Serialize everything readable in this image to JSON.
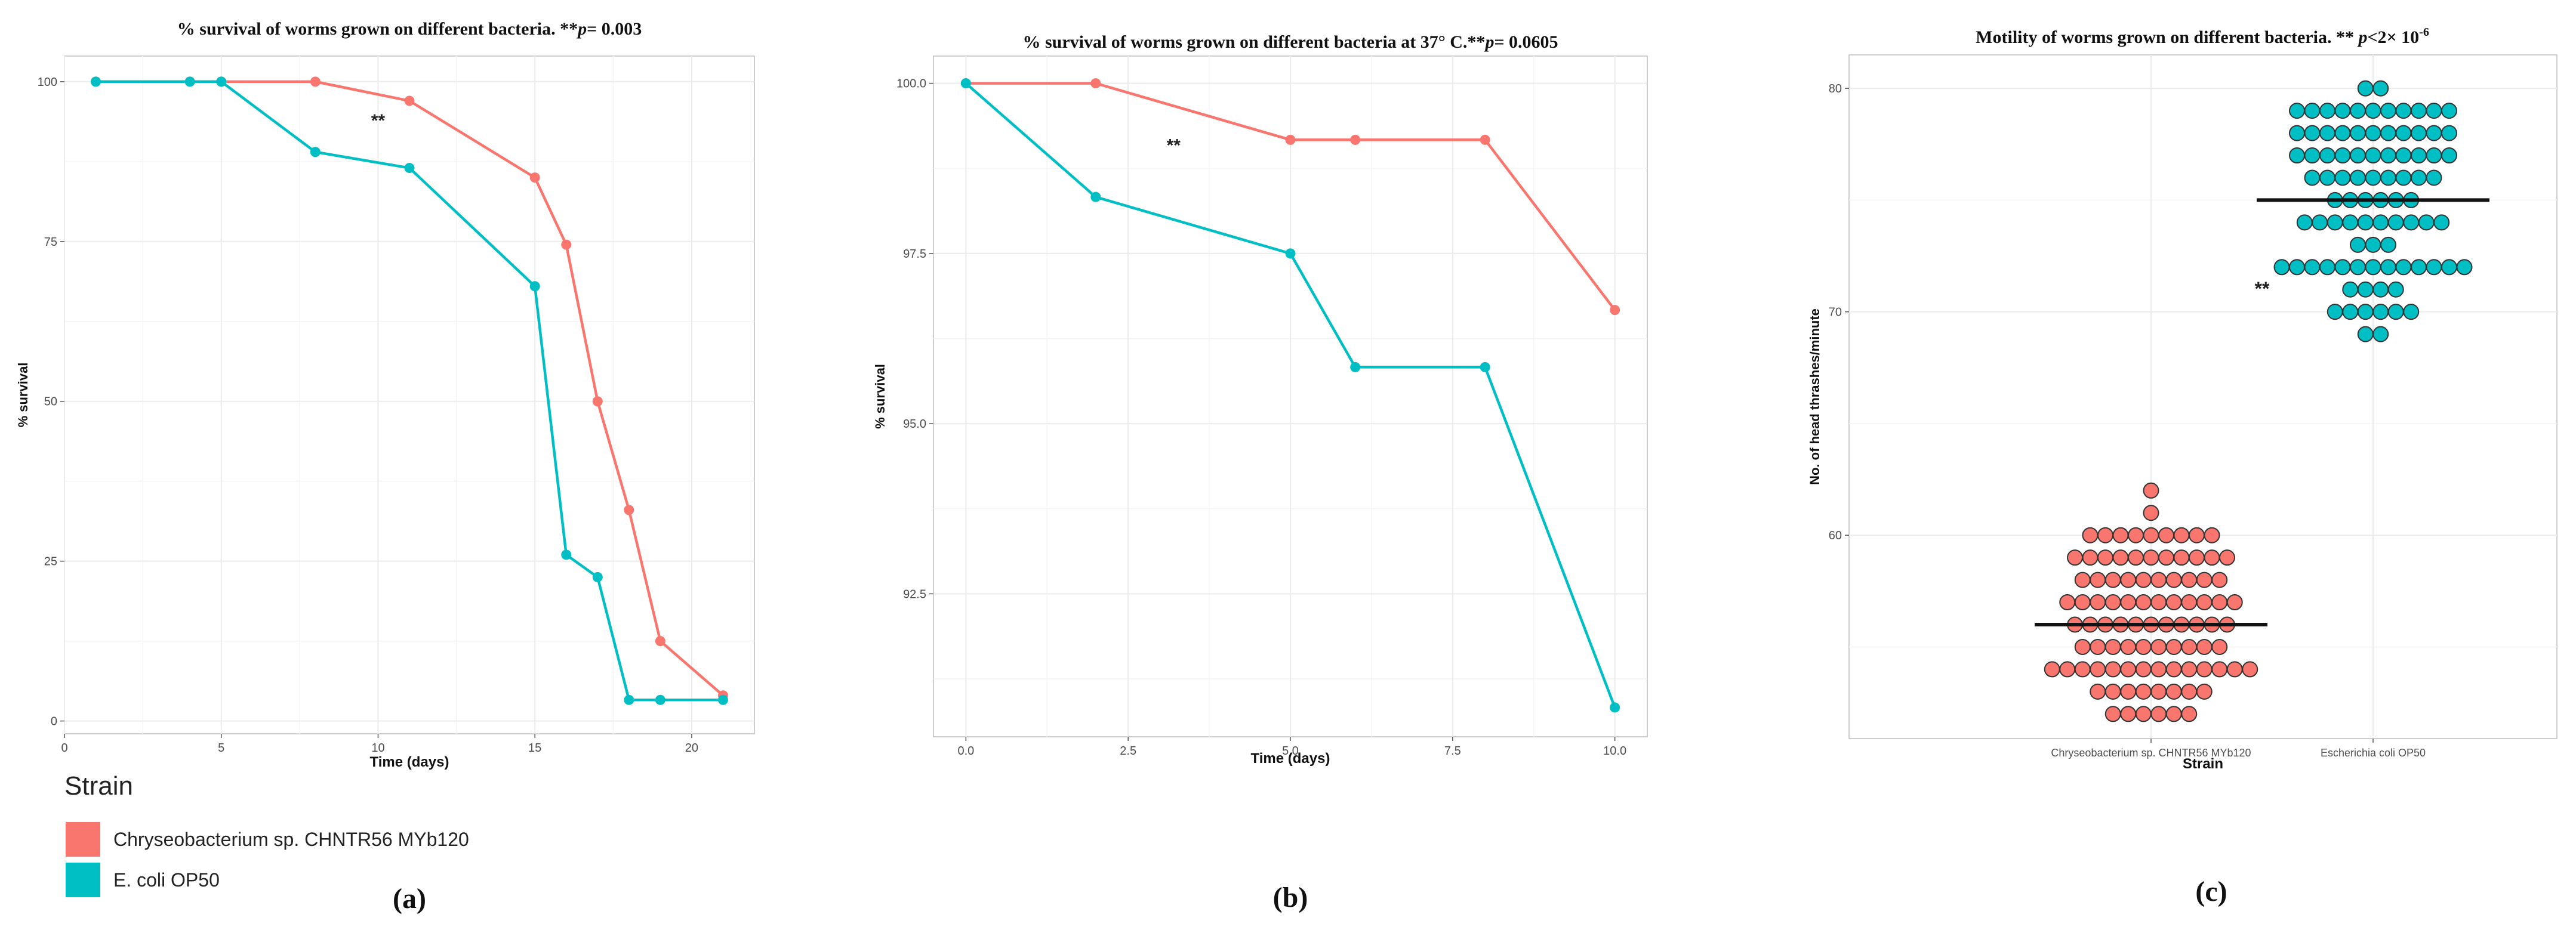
{
  "colors": {
    "chryseo": "#F8766D",
    "ecoli": "#00BFC4",
    "median": "#111111",
    "grid": "#ebebeb",
    "frame": "#bdbdbd"
  },
  "legend": {
    "title": "Strain",
    "items": [
      {
        "label": "Chryseobacterium sp. CHNTR56 MYb120",
        "color_key": "chryseo"
      },
      {
        "label": "E. coli OP50",
        "color_key": "ecoli"
      }
    ]
  },
  "chart_data": [
    {
      "id": "a",
      "type": "line",
      "title_prefix": "% survival of worms grown on different bacteria. **",
      "title_p": "p",
      "title_suffix": "= 0.003",
      "xlabel": "Time (days)",
      "ylabel": "% survival",
      "xlim": [
        0,
        22
      ],
      "ylim": [
        -2,
        104
      ],
      "xticks": [
        0,
        5,
        10,
        15,
        20
      ],
      "xtick_labels": [
        "0",
        "5",
        "10",
        "15",
        "20"
      ],
      "yticks": [
        0,
        25,
        50,
        75,
        100
      ],
      "ytick_labels": [
        "0",
        "25",
        "50",
        "75",
        "100"
      ],
      "annotation": {
        "text": "**",
        "x": 10,
        "y": 93
      },
      "caption": "(a)",
      "series": [
        {
          "name": "Chryseobacterium sp. CHNTR56 MYb120",
          "color_key": "chryseo",
          "x": [
            1,
            4,
            5,
            8,
            11,
            15,
            16,
            17,
            18,
            19,
            21
          ],
          "y": [
            100,
            100,
            100,
            100,
            97,
            85,
            74.5,
            50,
            33,
            12.5,
            4
          ]
        },
        {
          "name": "E. coli OP50",
          "color_key": "ecoli",
          "x": [
            1,
            4,
            5,
            8,
            11,
            15,
            16,
            17,
            18,
            19,
            21
          ],
          "y": [
            100,
            100,
            100,
            89,
            86.5,
            68,
            26,
            22.5,
            3.3,
            3.3,
            3.3
          ]
        }
      ]
    },
    {
      "id": "b",
      "type": "line",
      "title_prefix": "% survival of worms grown on different bacteria at 37° C.**",
      "title_p": "p",
      "title_suffix": "= 0.0605",
      "xlabel": "Time (days)",
      "ylabel": "% survival",
      "xlim": [
        -0.5,
        10.5
      ],
      "ylim": [
        90.4,
        100.4
      ],
      "xticks": [
        0,
        2.5,
        5,
        7.5,
        10
      ],
      "xtick_labels": [
        "0.0",
        "2.5",
        "5.0",
        "7.5",
        "10.0"
      ],
      "yticks": [
        92.5,
        95,
        97.5,
        100
      ],
      "ytick_labels": [
        "92.5",
        "95.0",
        "97.5",
        "100.0"
      ],
      "annotation": {
        "text": "**",
        "x": 3.2,
        "y": 99.0
      },
      "caption": "(b)",
      "series": [
        {
          "name": "Chryseobacterium sp. CHNTR56 MYb120",
          "color_key": "chryseo",
          "x": [
            0,
            2,
            5,
            6,
            8,
            10
          ],
          "y": [
            100,
            100,
            99.17,
            99.17,
            99.17,
            96.67
          ]
        },
        {
          "name": "E. coli OP50",
          "color_key": "ecoli",
          "x": [
            0,
            2,
            5,
            6,
            8,
            10
          ],
          "y": [
            100,
            98.33,
            97.5,
            95.83,
            95.83,
            90.83
          ]
        }
      ]
    },
    {
      "id": "c",
      "type": "scatter",
      "subtype": "dotplot",
      "title_prefix": "Motility of worms grown on different bacteria. ** ",
      "title_p": "p",
      "title_suffix": "<2× 10",
      "title_sup": "-6",
      "xlabel": "Strain",
      "ylabel": "No. of head thrashes/minute",
      "categories": [
        "Chryseobacterium sp. CHNTR56 MYb120",
        "Escherichia coli OP50"
      ],
      "ylim": [
        50.9,
        81.5
      ],
      "yticks": [
        60,
        70,
        80
      ],
      "ytick_labels": [
        "60",
        "70",
        "80"
      ],
      "annotation": {
        "text": "**",
        "y": 71
      },
      "caption": "(c)",
      "series": [
        {
          "name": "Chryseobacterium sp. CHNTR56 MYb120",
          "color_key": "chryseo",
          "median": 56,
          "counts": [
            [
              52,
              6
            ],
            [
              53,
              8
            ],
            [
              54,
              14
            ],
            [
              55,
              10
            ],
            [
              56,
              11
            ],
            [
              57,
              12
            ],
            [
              58,
              10
            ],
            [
              59,
              11
            ],
            [
              60,
              9
            ],
            [
              61,
              1
            ],
            [
              62,
              1
            ]
          ]
        },
        {
          "name": "Escherichia coli OP50",
          "color_key": "ecoli",
          "median": 75,
          "counts": [
            [
              69,
              2
            ],
            [
              70,
              6
            ],
            [
              71,
              4
            ],
            [
              72,
              13
            ],
            [
              73,
              3
            ],
            [
              74,
              10
            ],
            [
              75,
              6
            ],
            [
              76,
              9
            ],
            [
              77,
              11
            ],
            [
              78,
              11
            ],
            [
              79,
              11
            ],
            [
              80,
              2
            ]
          ]
        }
      ]
    }
  ]
}
